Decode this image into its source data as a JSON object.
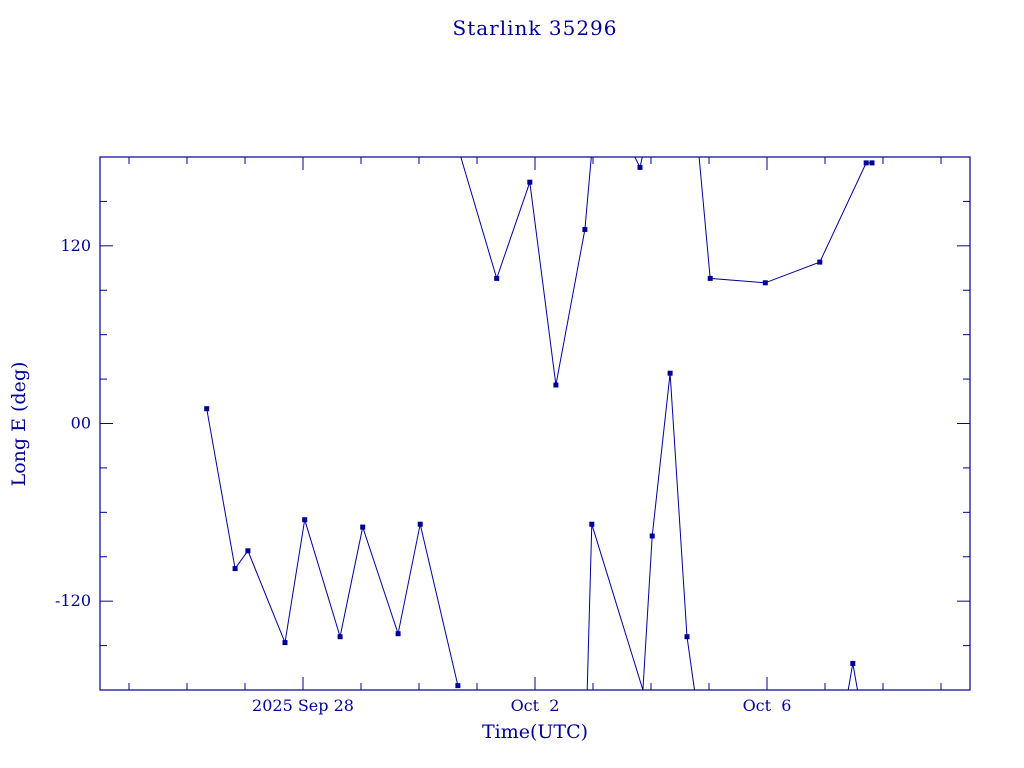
{
  "page": {
    "background": "#ffffff"
  },
  "chart_data": {
    "type": "line",
    "title": "Starlink 35296",
    "xlabel": "Time(UTC)",
    "ylabel": "Long E (deg)",
    "x_unit": "days relative to 2025-09-28 00:00 UTC",
    "xlim": [
      -3.5,
      11.5
    ],
    "ylim": [
      -180,
      180
    ],
    "x_minor_step": 1,
    "y_minor_step": 30,
    "x_major_ticks": [
      {
        "t": 0,
        "label": "2025 Sep 28"
      },
      {
        "t": 4,
        "label": "Oct  2"
      },
      {
        "t": 8,
        "label": "Oct  6"
      }
    ],
    "y_major_ticks": [
      {
        "v": 120,
        "label": "120"
      },
      {
        "v": 0,
        "label": "00"
      },
      {
        "v": -120,
        "label": "-120"
      }
    ],
    "line_color": "#000099",
    "text_color": "#000099",
    "marker": "filled-square",
    "series": [
      {
        "name": "segment-1",
        "points": [
          [
            -1.66,
            10
          ],
          [
            -1.17,
            -98
          ],
          [
            -0.95,
            -86
          ],
          [
            -0.31,
            -148
          ],
          [
            0.03,
            -65
          ],
          [
            0.64,
            -144
          ],
          [
            1.03,
            -70
          ],
          [
            1.64,
            -142
          ],
          [
            2.02,
            -68
          ],
          [
            2.67,
            -177
          ]
        ],
        "markers": [
          0,
          1,
          2,
          3,
          4,
          5,
          6,
          7,
          8,
          9
        ]
      },
      {
        "name": "segment-2",
        "points": [
          [
            2.72,
            180
          ],
          [
            3.34,
            98
          ],
          [
            3.91,
            163
          ],
          [
            4.36,
            26
          ],
          [
            4.86,
            131
          ],
          [
            4.97,
            180
          ]
        ],
        "markers": [
          1,
          2,
          3,
          4
        ]
      },
      {
        "name": "segment-3",
        "points": [
          [
            5.72,
            180
          ],
          [
            5.81,
            173
          ],
          [
            5.85,
            180
          ]
        ],
        "markers": [
          1
        ]
      },
      {
        "name": "segment-4",
        "points": [
          [
            4.9,
            -180
          ],
          [
            4.98,
            -68
          ],
          [
            5.86,
            -180
          ],
          [
            6.02,
            -76
          ],
          [
            6.33,
            34
          ],
          [
            6.62,
            -144
          ],
          [
            6.75,
            -180
          ]
        ],
        "markers": [
          1,
          3,
          4,
          5
        ]
      },
      {
        "name": "segment-5",
        "points": [
          [
            6.83,
            180
          ],
          [
            7.02,
            98
          ],
          [
            7.97,
            95
          ],
          [
            8.91,
            109
          ],
          [
            9.71,
            176
          ],
          [
            9.81,
            176
          ]
        ],
        "markers": [
          1,
          2,
          3,
          4,
          5
        ]
      },
      {
        "name": "segment-6",
        "points": [
          [
            9.4,
            -180
          ],
          [
            9.48,
            -162
          ],
          [
            9.56,
            -180
          ]
        ],
        "markers": [
          1
        ]
      }
    ]
  }
}
